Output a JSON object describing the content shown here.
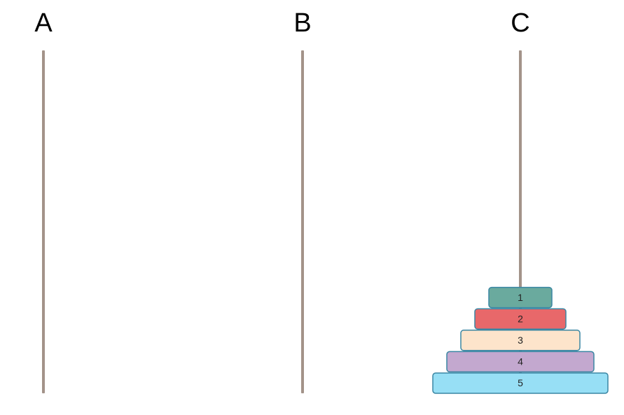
{
  "pegs": [
    {
      "label": "A",
      "disks": []
    },
    {
      "label": "B",
      "disks": []
    },
    {
      "label": "C",
      "disks": [
        "1",
        "2",
        "3",
        "4",
        "5"
      ]
    }
  ]
}
